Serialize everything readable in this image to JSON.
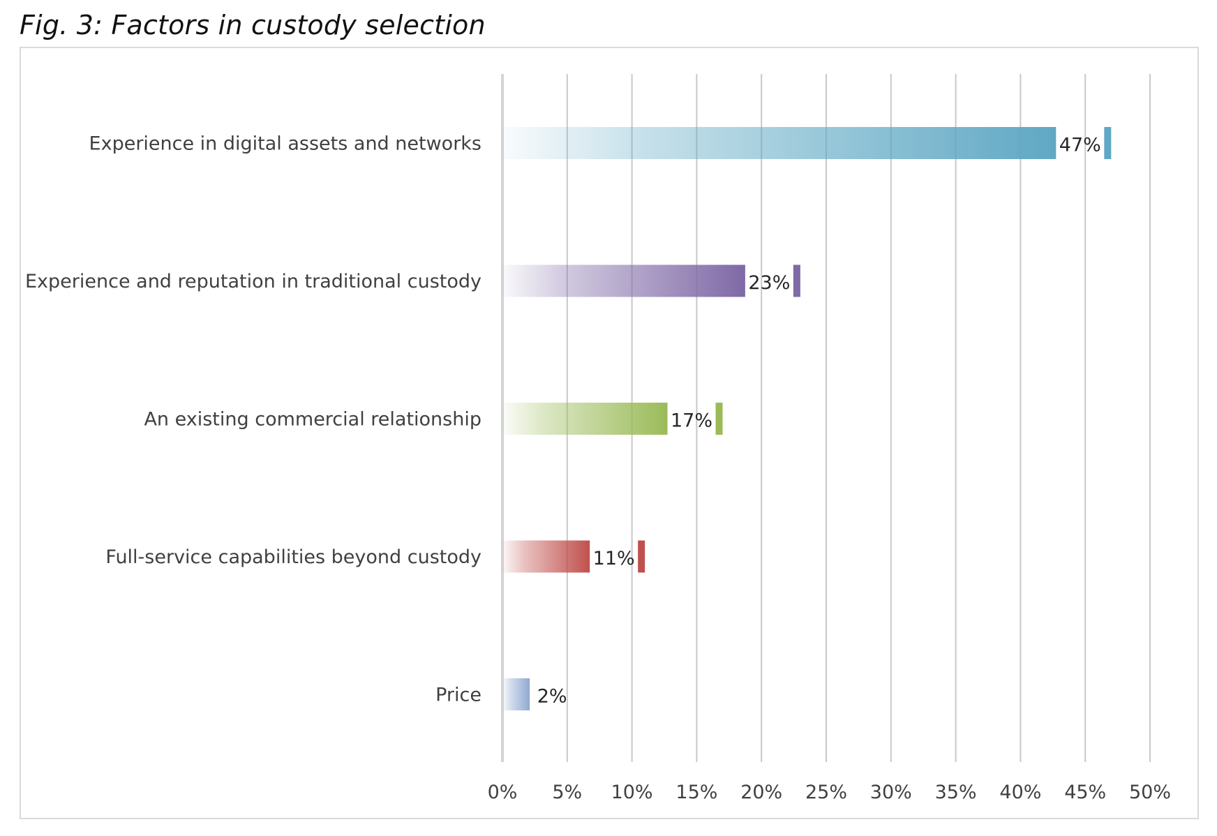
{
  "figure": {
    "title": "Fig. 3: Factors in custody selection"
  },
  "chart_data": {
    "type": "bar",
    "orientation": "horizontal",
    "categories": [
      "Experience in digital assets and networks",
      "Experience and reputation in traditional custody",
      "An existing commercial relationship",
      "Full-service capabilities beyond custody",
      "Price"
    ],
    "values": [
      47,
      23,
      17,
      11,
      2
    ],
    "value_labels": [
      "47%",
      "23%",
      "17%",
      "11%",
      "2%"
    ],
    "colors": [
      "#5fa8c4",
      "#7f69a6",
      "#9bbb59",
      "#c0504d",
      "#8fa9d1"
    ],
    "xlim": [
      0,
      50
    ],
    "xticks": [
      0,
      5,
      10,
      15,
      20,
      25,
      30,
      35,
      40,
      45,
      50
    ],
    "xtick_labels": [
      "0%",
      "5%",
      "10%",
      "15%",
      "20%",
      "25%",
      "30%",
      "35%",
      "40%",
      "45%",
      "50%"
    ],
    "xlabel": "",
    "ylabel": "",
    "grid": "vertical",
    "legend": "none"
  }
}
